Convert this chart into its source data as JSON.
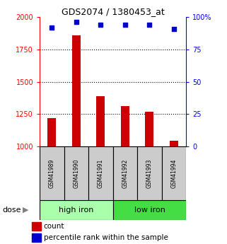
{
  "title": "GDS2074 / 1380453_at",
  "samples": [
    "GSM41989",
    "GSM41990",
    "GSM41991",
    "GSM41992",
    "GSM41993",
    "GSM41994"
  ],
  "counts": [
    1220,
    1860,
    1390,
    1310,
    1270,
    1045
  ],
  "percentiles": [
    92,
    96,
    94,
    94,
    94,
    91
  ],
  "ylim_left": [
    1000,
    2000
  ],
  "ylim_right": [
    0,
    100
  ],
  "yticks_left": [
    1000,
    1250,
    1500,
    1750,
    2000
  ],
  "yticks_right": [
    0,
    25,
    50,
    75,
    100
  ],
  "ytick_labels_right": [
    "0",
    "25",
    "50",
    "75",
    "100%"
  ],
  "bar_color": "#cc0000",
  "dot_color": "#0000cc",
  "baseline": 1000,
  "group_high_color": "#aaffaa",
  "group_low_color": "#44dd44",
  "group_high_label": "high iron",
  "group_low_label": "low iron",
  "sample_box_color": "#cccccc",
  "legend_count_label": "count",
  "legend_percentile_label": "percentile rank within the sample",
  "dose_label": "dose",
  "background_color": "#ffffff"
}
